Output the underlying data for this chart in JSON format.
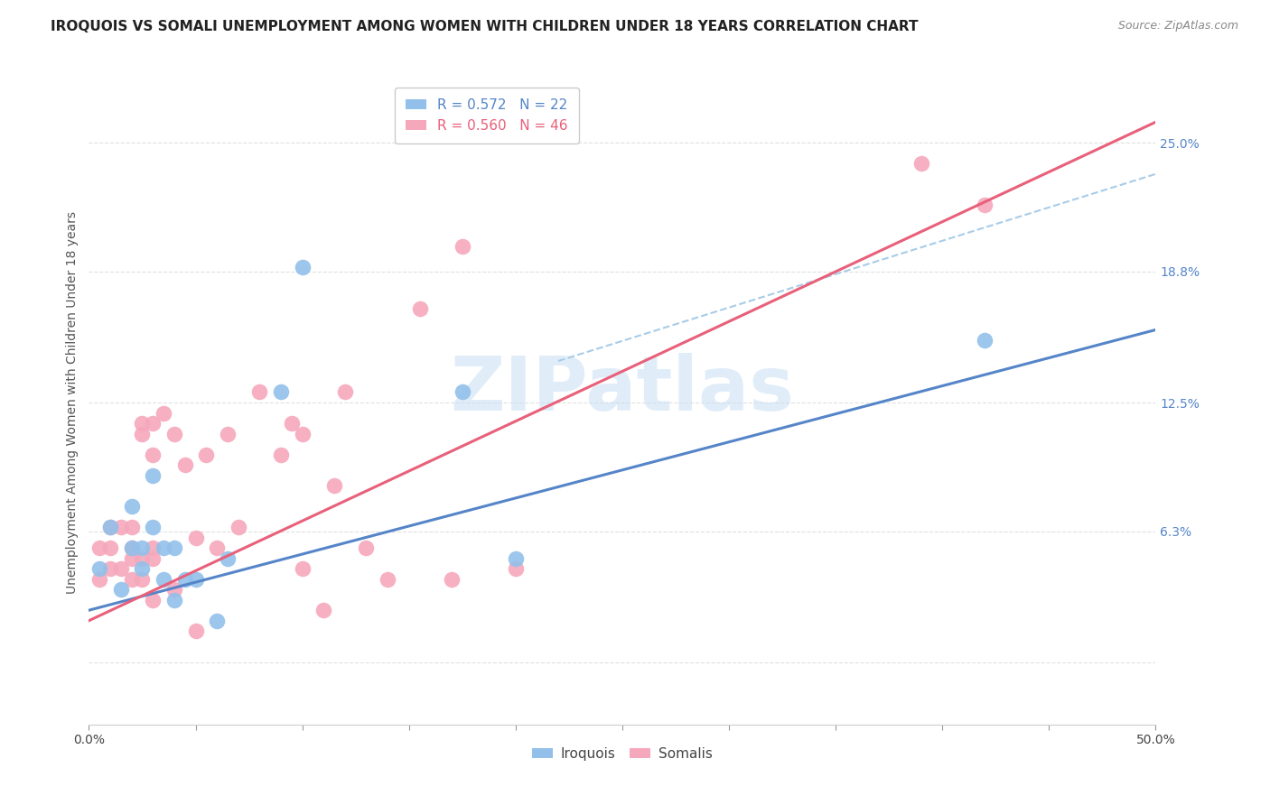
{
  "title": "IROQUOIS VS SOMALI UNEMPLOYMENT AMONG WOMEN WITH CHILDREN UNDER 18 YEARS CORRELATION CHART",
  "source": "Source: ZipAtlas.com",
  "ylabel": "Unemployment Among Women with Children Under 18 years",
  "xlim": [
    0.0,
    0.5
  ],
  "ylim": [
    -0.03,
    0.28
  ],
  "xticks": [
    0.0,
    0.05,
    0.1,
    0.15,
    0.2,
    0.25,
    0.3,
    0.35,
    0.4,
    0.45,
    0.5
  ],
  "xticklabels": [
    "0.0%",
    "",
    "",
    "",
    "",
    "",
    "",
    "",
    "",
    "",
    "50.0%"
  ],
  "ytick_positions": [
    0.0,
    0.063,
    0.125,
    0.188,
    0.25
  ],
  "ytick_labels": [
    "",
    "6.3%",
    "12.5%",
    "18.8%",
    "25.0%"
  ],
  "watermark": "ZIPatlas",
  "iroquois_R": "0.572",
  "iroquois_N": "22",
  "somali_R": "0.560",
  "somali_N": "46",
  "iroquois_color": "#92c0ea",
  "somali_color": "#f5a8bc",
  "iroquois_line_color": "#5585c8",
  "somali_line_color": "#e8607a",
  "dashed_line_color": "#a8cce8",
  "grid_color": "#e0e0e0",
  "iroquois_points_x": [
    0.005,
    0.01,
    0.015,
    0.02,
    0.02,
    0.025,
    0.025,
    0.03,
    0.03,
    0.035,
    0.035,
    0.04,
    0.04,
    0.045,
    0.05,
    0.06,
    0.065,
    0.09,
    0.1,
    0.175,
    0.2,
    0.42
  ],
  "iroquois_points_y": [
    0.045,
    0.065,
    0.035,
    0.055,
    0.075,
    0.045,
    0.055,
    0.065,
    0.09,
    0.055,
    0.04,
    0.03,
    0.055,
    0.04,
    0.04,
    0.02,
    0.05,
    0.13,
    0.19,
    0.13,
    0.05,
    0.155
  ],
  "somali_points_x": [
    0.005,
    0.005,
    0.01,
    0.01,
    0.01,
    0.015,
    0.015,
    0.02,
    0.02,
    0.02,
    0.02,
    0.025,
    0.025,
    0.025,
    0.025,
    0.03,
    0.03,
    0.03,
    0.03,
    0.03,
    0.035,
    0.04,
    0.04,
    0.045,
    0.05,
    0.05,
    0.055,
    0.06,
    0.065,
    0.07,
    0.08,
    0.09,
    0.095,
    0.1,
    0.1,
    0.11,
    0.115,
    0.12,
    0.13,
    0.14,
    0.155,
    0.17,
    0.175,
    0.2,
    0.39,
    0.42
  ],
  "somali_points_y": [
    0.04,
    0.055,
    0.045,
    0.055,
    0.065,
    0.045,
    0.065,
    0.04,
    0.05,
    0.055,
    0.065,
    0.04,
    0.05,
    0.11,
    0.115,
    0.03,
    0.05,
    0.055,
    0.1,
    0.115,
    0.12,
    0.035,
    0.11,
    0.095,
    0.015,
    0.06,
    0.1,
    0.055,
    0.11,
    0.065,
    0.13,
    0.1,
    0.115,
    0.045,
    0.11,
    0.025,
    0.085,
    0.13,
    0.055,
    0.04,
    0.17,
    0.04,
    0.2,
    0.045,
    0.24,
    0.22
  ],
  "iroquois_line_x": [
    0.0,
    0.5
  ],
  "iroquois_line_y": [
    0.025,
    0.16
  ],
  "somali_line_x": [
    0.0,
    0.5
  ],
  "somali_line_y": [
    0.02,
    0.26
  ],
  "dashed_line_x": [
    0.22,
    0.5
  ],
  "dashed_line_y": [
    0.145,
    0.235
  ],
  "background_color": "#ffffff",
  "title_fontsize": 11,
  "source_fontsize": 9,
  "legend_fontsize": 11,
  "axis_label_fontsize": 10
}
